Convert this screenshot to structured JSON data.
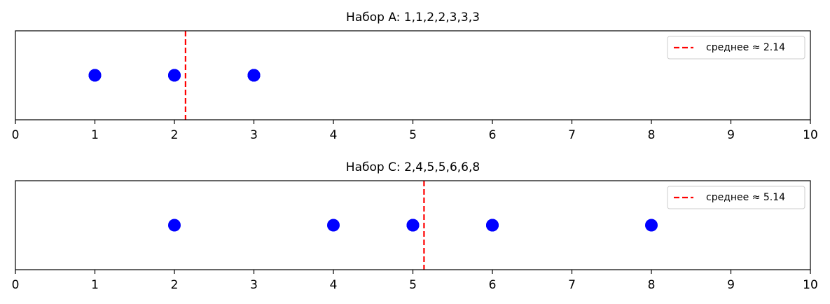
{
  "chart_data": [
    {
      "type": "dot",
      "title": "Набор A: 1,1,2,2,3,3,3",
      "values": [
        1,
        1,
        2,
        2,
        3,
        3,
        3
      ],
      "color": "#0000ff",
      "xlim": [
        0,
        10
      ],
      "xticks": [
        0,
        1,
        2,
        3,
        4,
        5,
        6,
        7,
        8,
        9,
        10
      ],
      "mean_line": {
        "name": "среднее ≈ 2.14",
        "value": 2.14,
        "color": "#ff0000"
      },
      "legend": "upper right"
    },
    {
      "type": "dot",
      "title": "Набор C: 2,4,5,5,6,6,8",
      "values": [
        2,
        4,
        5,
        5,
        6,
        6,
        8
      ],
      "color": "#0000ff",
      "xlim": [
        0,
        10
      ],
      "xticks": [
        0,
        1,
        2,
        3,
        4,
        5,
        6,
        7,
        8,
        9,
        10
      ],
      "mean_line": {
        "name": "среднее ≈ 5.14",
        "value": 5.14,
        "color": "#ff0000"
      },
      "legend": "upper right"
    }
  ]
}
